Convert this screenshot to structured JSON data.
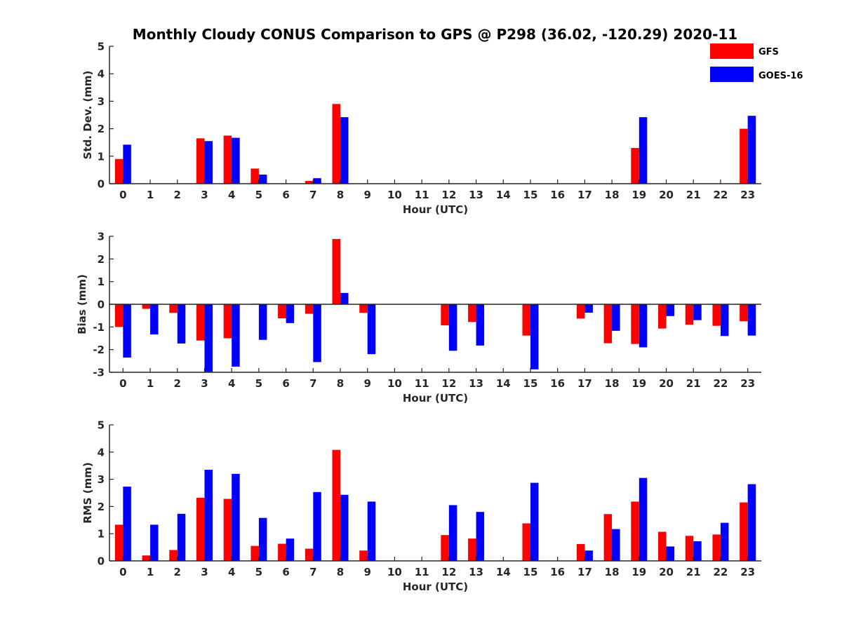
{
  "colors": {
    "gfs": "#ff0000",
    "goes": "#0000ff",
    "axis": "#262626"
  },
  "chart_data": {
    "title": "Monthly Cloudy CONUS Comparison to GPS @ P298 (36.02, -120.29) 2020-11",
    "legend": {
      "placement": "top-right",
      "entries": [
        "GFS",
        "GOES-16"
      ]
    },
    "panels": [
      {
        "type": "bar",
        "xlabel": "Hour (UTC)",
        "ylabel": "Std. Dev. (mm)",
        "ylim": [
          0,
          5
        ],
        "yticks": [
          0,
          1,
          2,
          3,
          4,
          5
        ],
        "categories": [
          "0",
          "1",
          "2",
          "3",
          "4",
          "5",
          "6",
          "7",
          "8",
          "9",
          "10",
          "11",
          "12",
          "13",
          "14",
          "15",
          "16",
          "17",
          "18",
          "19",
          "20",
          "21",
          "22",
          "23"
        ],
        "series": [
          {
            "name": "GFS",
            "values": [
              0.9,
              null,
              null,
              1.65,
              1.75,
              0.55,
              null,
              0.1,
              2.9,
              null,
              null,
              null,
              null,
              null,
              null,
              null,
              null,
              null,
              null,
              1.3,
              null,
              null,
              null,
              2.0
            ]
          },
          {
            "name": "GOES-16",
            "values": [
              1.42,
              null,
              null,
              1.55,
              1.67,
              0.33,
              null,
              0.2,
              2.42,
              null,
              null,
              null,
              null,
              null,
              null,
              null,
              null,
              null,
              null,
              2.42,
              null,
              null,
              null,
              2.47
            ]
          }
        ]
      },
      {
        "type": "bar",
        "xlabel": "Hour (UTC)",
        "ylabel": "Bias (mm)",
        "ylim": [
          -3,
          3
        ],
        "yticks": [
          -3,
          -2,
          -1,
          0,
          1,
          2,
          3
        ],
        "categories": [
          "0",
          "1",
          "2",
          "3",
          "4",
          "5",
          "6",
          "7",
          "8",
          "9",
          "10",
          "11",
          "12",
          "13",
          "14",
          "15",
          "16",
          "17",
          "18",
          "19",
          "20",
          "21",
          "22",
          "23"
        ],
        "series": [
          {
            "name": "GFS",
            "values": [
              -1.0,
              -0.2,
              -0.38,
              -1.6,
              -1.5,
              0.03,
              -0.62,
              -0.42,
              2.88,
              -0.38,
              null,
              null,
              -0.93,
              -0.78,
              null,
              -1.38,
              null,
              -0.63,
              -1.72,
              -1.75,
              -1.07,
              -0.9,
              -0.95,
              -0.75
            ]
          },
          {
            "name": "GOES-16",
            "values": [
              -2.35,
              -1.33,
              -1.73,
              -2.98,
              -2.75,
              -1.57,
              -0.83,
              -2.55,
              0.5,
              -2.2,
              null,
              null,
              -2.05,
              -1.82,
              null,
              -2.87,
              null,
              -0.37,
              -1.17,
              -1.9,
              -0.52,
              -0.7,
              -1.4,
              -1.38
            ]
          }
        ]
      },
      {
        "type": "bar",
        "xlabel": "Hour (UTC)",
        "ylabel": "RMS (mm)",
        "ylim": [
          0,
          5
        ],
        "yticks": [
          0,
          1,
          2,
          3,
          4,
          5
        ],
        "categories": [
          "0",
          "1",
          "2",
          "3",
          "4",
          "5",
          "6",
          "7",
          "8",
          "9",
          "10",
          "11",
          "12",
          "13",
          "14",
          "15",
          "16",
          "17",
          "18",
          "19",
          "20",
          "21",
          "22",
          "23"
        ],
        "series": [
          {
            "name": "GFS",
            "values": [
              1.33,
              0.2,
              0.4,
              2.32,
              2.28,
              0.55,
              0.63,
              0.45,
              4.08,
              0.38,
              null,
              null,
              0.95,
              0.82,
              null,
              1.38,
              null,
              0.62,
              1.72,
              2.18,
              1.07,
              0.92,
              0.97,
              2.15
            ]
          },
          {
            "name": "GOES-16",
            "values": [
              2.73,
              1.33,
              1.73,
              3.35,
              3.2,
              1.58,
              0.82,
              2.53,
              2.43,
              2.18,
              null,
              null,
              2.05,
              1.8,
              null,
              2.87,
              null,
              0.38,
              1.17,
              3.05,
              0.53,
              0.72,
              1.4,
              2.82
            ]
          }
        ]
      }
    ]
  }
}
